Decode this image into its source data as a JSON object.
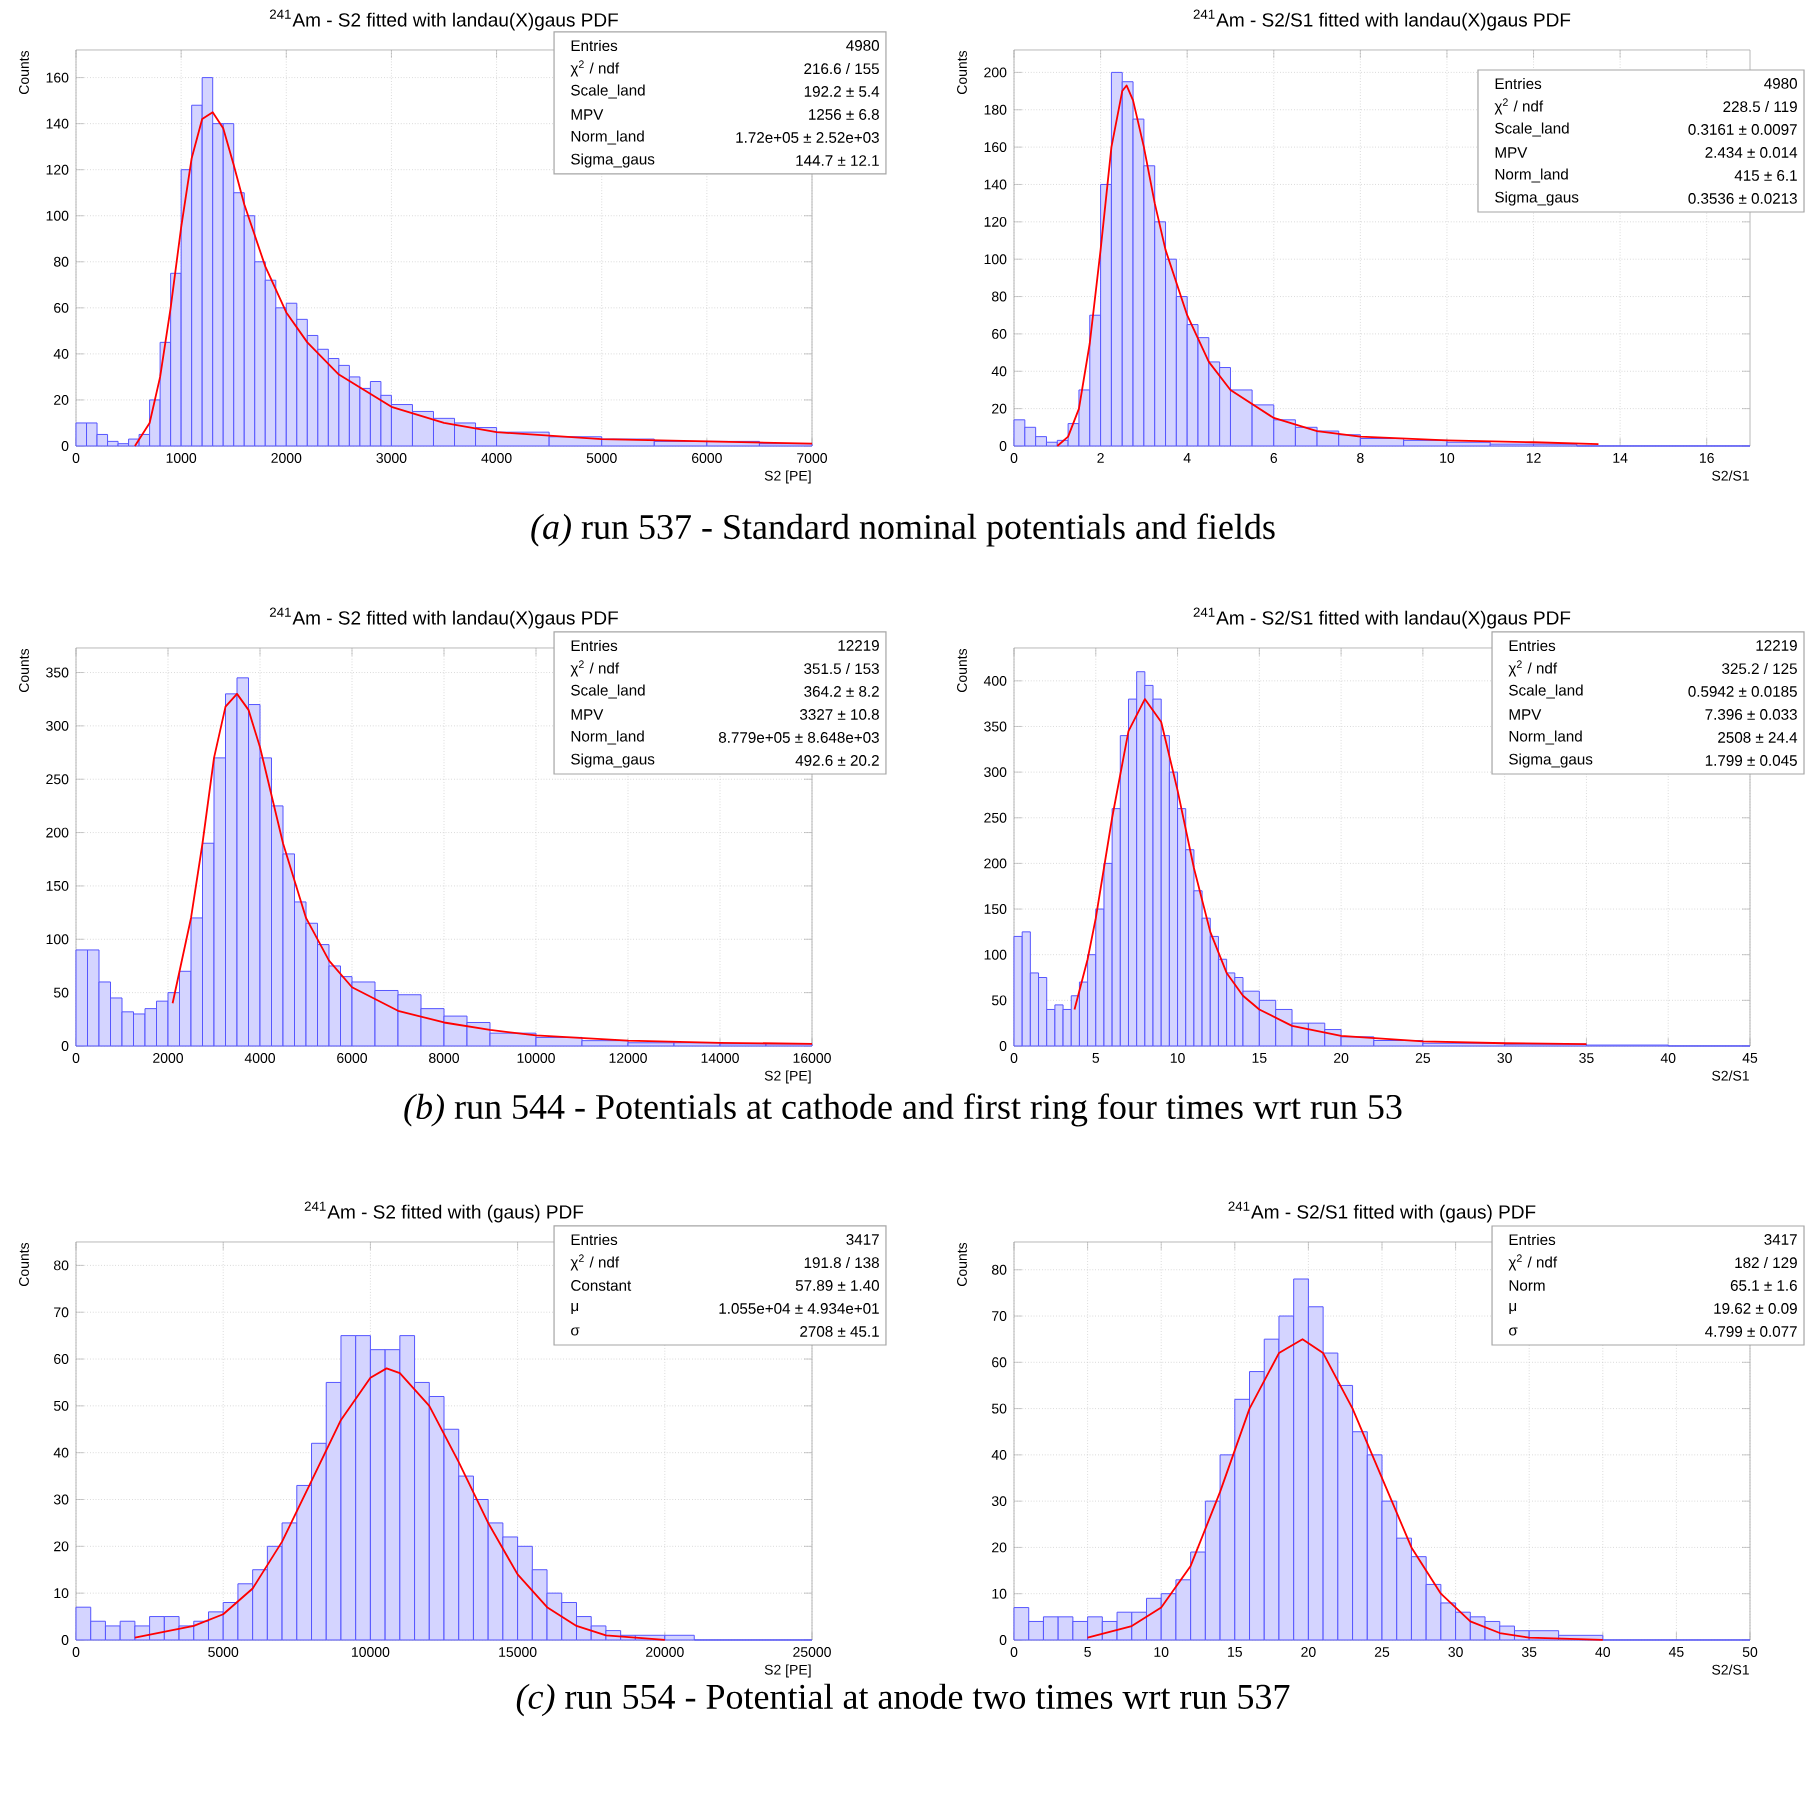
{
  "chart_data": [
    {
      "type": "histogram",
      "title": "$^{241}$Am - S2 fitted with landau(X)gaus PDF",
      "xlabel": "S2 [PE]",
      "ylabel": "Counts",
      "xlim": [
        0,
        7000
      ],
      "ylim": [
        0,
        172
      ],
      "xticks": [
        0,
        1000,
        2000,
        3000,
        4000,
        5000,
        6000,
        7000
      ],
      "yticks": [
        0,
        20,
        40,
        60,
        80,
        100,
        120,
        140,
        160
      ],
      "grid": true,
      "series": [
        {
          "color": "#5555ff",
          "bins": [
            0,
            100,
            200,
            300,
            400,
            500,
            600,
            700,
            800,
            900,
            1000,
            1100,
            1200,
            1300,
            1400,
            1500,
            1600,
            1700,
            1800,
            1900,
            2000,
            2100,
            2200,
            2300,
            2400,
            2500,
            2600,
            2700,
            2800,
            2900,
            3000,
            3200,
            3400,
            3600,
            3800,
            4000,
            4500,
            5000,
            5500,
            6000,
            6500,
            7000
          ],
          "values": [
            10,
            10,
            5,
            2,
            1,
            3,
            5,
            20,
            45,
            75,
            120,
            148,
            160,
            140,
            140,
            110,
            100,
            80,
            72,
            60,
            62,
            55,
            48,
            42,
            38,
            35,
            30,
            25,
            28,
            22,
            18,
            15,
            12,
            10,
            8,
            6,
            4,
            3,
            2,
            2,
            1
          ]
        },
        {
          "type": "line",
          "color": "#ff0000",
          "x": [
            560,
            700,
            800,
            900,
            1000,
            1100,
            1200,
            1300,
            1400,
            1500,
            1600,
            1800,
            2000,
            2200,
            2500,
            3000,
            3500,
            4000,
            5000,
            6000,
            7000
          ],
          "values": [
            0,
            10,
            30,
            60,
            95,
            125,
            142,
            145,
            138,
            122,
            105,
            78,
            58,
            45,
            31,
            17,
            10,
            6,
            3,
            2,
            1
          ]
        }
      ],
      "annotations": [
        "Entries",
        "4980",
        "χ$^{2}$ / ndf",
        "216.6 / 155",
        "Scale_land",
        "192.2 ± 5.4",
        "MPV",
        "1256 ± 6.8",
        "Norm_land",
        "1.72e+05 ± 2.52e+03",
        "Sigma_gaus",
        "144.7 ± 12.1",
        "*(a)* run 537 - Standard nominal potentials and fields"
      ]
    },
    {
      "type": "histogram",
      "title": "$^{241}$Am - S2/S1 fitted with landau(X)gaus PDF",
      "xlabel": "S2/S1",
      "ylabel": "Counts",
      "xlim": [
        0,
        17
      ],
      "ylim": [
        0,
        212
      ],
      "xticks": [
        0,
        2,
        4,
        6,
        8,
        10,
        12,
        14,
        16
      ],
      "yticks": [
        0,
        20,
        40,
        60,
        80,
        100,
        120,
        140,
        160,
        180,
        200
      ],
      "grid": true,
      "series": [
        {
          "color": "#5555ff",
          "bins": [
            0,
            0.25,
            0.5,
            0.75,
            1,
            1.25,
            1.5,
            1.75,
            2,
            2.25,
            2.5,
            2.75,
            3,
            3.25,
            3.5,
            3.75,
            4,
            4.25,
            4.5,
            4.75,
            5,
            5.5,
            6,
            6.5,
            7,
            7.5,
            8,
            9,
            10,
            11,
            12,
            13,
            17
          ],
          "values": [
            14,
            10,
            5,
            2,
            3,
            12,
            30,
            70,
            140,
            200,
            195,
            175,
            150,
            120,
            100,
            80,
            65,
            58,
            45,
            42,
            30,
            22,
            14,
            10,
            8,
            6,
            4,
            3,
            2,
            1,
            1,
            0
          ]
        },
        {
          "type": "line",
          "color": "#ff0000",
          "x": [
            1,
            1.25,
            1.5,
            1.75,
            2,
            2.25,
            2.5,
            2.6,
            2.75,
            3,
            3.25,
            3.5,
            4,
            4.5,
            5,
            6,
            7,
            8,
            10,
            12,
            13.5
          ],
          "values": [
            0,
            5,
            20,
            55,
            105,
            160,
            190,
            193,
            185,
            160,
            130,
            105,
            70,
            45,
            30,
            15,
            8,
            5,
            3,
            2,
            1
          ]
        }
      ],
      "annotations": [
        "Entries",
        "4980",
        "χ$^{2}$ / ndf",
        "228.5 / 119",
        "Scale_land",
        "0.3161 ± 0.0097",
        "MPV",
        "2.434 ± 0.014",
        "Norm_land",
        "415 ± 6.1",
        "Sigma_gaus",
        "0.3536 ± 0.0213"
      ]
    },
    {
      "type": "histogram",
      "title": "$^{241}$Am - S2 fitted with landau(X)gaus PDF",
      "xlabel": "S2 [PE]",
      "ylabel": "Counts",
      "xlim": [
        0,
        16000
      ],
      "ylim": [
        0,
        373
      ],
      "xticks": [
        0,
        2000,
        4000,
        6000,
        8000,
        10000,
        12000,
        14000,
        16000
      ],
      "yticks": [
        0,
        50,
        100,
        150,
        200,
        250,
        300,
        350
      ],
      "grid": true,
      "series": [
        {
          "color": "#5555ff",
          "bins": [
            0,
            250,
            500,
            750,
            1000,
            1250,
            1500,
            1750,
            2000,
            2250,
            2500,
            2750,
            3000,
            3250,
            3500,
            3750,
            4000,
            4250,
            4500,
            4750,
            5000,
            5250,
            5500,
            5750,
            6000,
            6500,
            7000,
            7500,
            8000,
            8500,
            9000,
            10000,
            11000,
            12000,
            13000,
            14000,
            15000,
            16000
          ],
          "values": [
            90,
            90,
            60,
            45,
            32,
            30,
            35,
            42,
            50,
            70,
            120,
            190,
            270,
            330,
            345,
            320,
            270,
            225,
            180,
            135,
            115,
            95,
            75,
            65,
            60,
            52,
            48,
            35,
            28,
            22,
            12,
            8,
            5,
            3,
            3,
            2,
            2
          ]
        },
        {
          "type": "line",
          "color": "#ff0000",
          "x": [
            2100,
            2500,
            2750,
            3000,
            3250,
            3500,
            3750,
            4000,
            4250,
            4500,
            5000,
            5500,
            6000,
            7000,
            8000,
            9000,
            10000,
            12000,
            14000,
            16000
          ],
          "values": [
            40,
            120,
            190,
            270,
            318,
            330,
            315,
            280,
            235,
            190,
            120,
            80,
            55,
            33,
            22,
            15,
            10,
            5,
            3,
            2
          ]
        }
      ],
      "annotations": [
        "Entries",
        "12219",
        "χ$^{2}$ / ndf",
        "351.5 / 153",
        "Scale_land",
        "364.2 ± 8.2",
        "MPV",
        "3327 ± 10.8",
        "Norm_land",
        "8.779e+05 ± 8.648e+03",
        "Sigma_gaus",
        "492.6 ± 20.2",
        "*(b)* run 544 - Potentials at cathode and first ring four times wrt run 53"
      ]
    },
    {
      "type": "histogram",
      "title": "$^{241}$Am - S2/S1 fitted with landau(X)gaus PDF",
      "xlabel": "S2/S1",
      "ylabel": "Counts",
      "xlim": [
        0,
        45
      ],
      "ylim": [
        0,
        436
      ],
      "xticks": [
        0,
        5,
        10,
        15,
        20,
        25,
        30,
        35,
        40,
        45
      ],
      "yticks": [
        0,
        50,
        100,
        150,
        200,
        250,
        300,
        350,
        400
      ],
      "grid": true,
      "series": [
        {
          "color": "#5555ff",
          "bins": [
            0,
            0.5,
            1,
            1.5,
            2,
            2.5,
            3,
            3.5,
            4,
            4.5,
            5,
            5.5,
            6,
            6.5,
            7,
            7.5,
            8,
            8.5,
            9,
            9.5,
            10,
            10.5,
            11,
            11.5,
            12,
            12.5,
            13,
            13.5,
            14,
            15,
            16,
            17,
            18,
            19,
            20,
            22,
            25,
            30,
            35,
            40,
            45
          ],
          "values": [
            120,
            125,
            80,
            75,
            40,
            45,
            40,
            55,
            70,
            100,
            150,
            200,
            260,
            340,
            380,
            410,
            395,
            380,
            340,
            300,
            260,
            215,
            170,
            140,
            120,
            95,
            80,
            75,
            60,
            50,
            40,
            25,
            25,
            18,
            10,
            6,
            3,
            2,
            1,
            0
          ]
        },
        {
          "type": "line",
          "color": "#ff0000",
          "x": [
            3.7,
            4.5,
            5,
            6,
            7,
            8,
            9,
            10,
            11,
            12,
            13,
            14,
            15,
            17,
            20,
            25,
            30,
            35
          ],
          "values": [
            40,
            95,
            140,
            250,
            345,
            380,
            355,
            280,
            195,
            125,
            80,
            55,
            40,
            22,
            11,
            5,
            3,
            2
          ]
        }
      ],
      "annotations": [
        "Entries",
        "12219",
        "χ$^{2}$ / ndf",
        "325.2 / 125",
        "Scale_land",
        "0.5942 ± 0.0185",
        "MPV",
        "7.396 ± 0.033",
        "Norm_land",
        "2508 ± 24.4",
        "Sigma_gaus",
        "1.799 ± 0.045"
      ]
    },
    {
      "type": "histogram",
      "title": "$^{241}$Am - S2 fitted with (gaus) PDF",
      "xlabel": "S2 [PE]",
      "ylabel": "Counts",
      "xlim": [
        0,
        25000
      ],
      "ylim": [
        0,
        85
      ],
      "xticks": [
        0,
        5000,
        10000,
        15000,
        20000,
        25000
      ],
      "yticks": [
        0,
        10,
        20,
        30,
        40,
        50,
        60,
        70,
        80
      ],
      "grid": true,
      "series": [
        {
          "color": "#5555ff",
          "bins": [
            0,
            500,
            1000,
            1500,
            2000,
            2500,
            3000,
            3500,
            4000,
            4500,
            5000,
            5500,
            6000,
            6500,
            7000,
            7500,
            8000,
            8500,
            9000,
            9500,
            10000,
            10500,
            11000,
            11500,
            12000,
            12500,
            13000,
            13500,
            14000,
            14500,
            15000,
            15500,
            16000,
            16500,
            17000,
            17500,
            18000,
            18500,
            19000,
            20000,
            21000,
            25000
          ],
          "values": [
            7,
            4,
            3,
            4,
            3,
            5,
            5,
            3,
            4,
            6,
            8,
            12,
            15,
            20,
            25,
            33,
            42,
            55,
            65,
            65,
            62,
            62,
            65,
            55,
            52,
            45,
            35,
            30,
            25,
            22,
            20,
            15,
            10,
            8,
            5,
            3,
            2,
            1,
            1,
            1,
            0
          ]
        },
        {
          "type": "line",
          "color": "#ff0000",
          "x": [
            2000,
            4000,
            5000,
            6000,
            7000,
            8000,
            9000,
            10000,
            10550,
            11000,
            12000,
            13000,
            14000,
            15000,
            16000,
            17000,
            18000,
            20000
          ],
          "values": [
            0.5,
            3,
            5.5,
            11,
            21,
            34,
            47,
            56,
            58,
            57,
            50,
            38,
            25,
            14,
            7,
            3,
            1,
            0
          ]
        }
      ],
      "annotations": [
        "Entries",
        "3417",
        "χ$^{2}$ / ndf",
        "191.8 / 138",
        "Constant",
        "57.89 ± 1.40",
        "μ",
        "1.055e+04 ± 4.934e+01",
        "σ",
        "2708 ± 45.1",
        "*(c)* run 554 - Potential at anode two times wrt run 537"
      ]
    },
    {
      "type": "histogram",
      "title": "$^{241}$Am - S2/S1 fitted with (gaus) PDF",
      "xlabel": "S2/S1",
      "ylabel": "Counts",
      "xlim": [
        0,
        50
      ],
      "ylim": [
        0,
        86
      ],
      "xticks": [
        0,
        5,
        10,
        15,
        20,
        25,
        30,
        35,
        40,
        45,
        50
      ],
      "yticks": [
        0,
        10,
        20,
        30,
        40,
        50,
        60,
        70,
        80
      ],
      "grid": true,
      "series": [
        {
          "color": "#5555ff",
          "bins": [
            0,
            1,
            2,
            3,
            4,
            5,
            6,
            7,
            8,
            9,
            10,
            11,
            12,
            13,
            14,
            15,
            16,
            17,
            18,
            19,
            20,
            21,
            22,
            23,
            24,
            25,
            26,
            27,
            28,
            29,
            30,
            31,
            32,
            33,
            34,
            35,
            37,
            40,
            50
          ],
          "values": [
            7,
            4,
            5,
            5,
            4,
            5,
            4,
            6,
            6,
            9,
            10,
            13,
            19,
            30,
            40,
            52,
            58,
            65,
            70,
            78,
            72,
            62,
            55,
            45,
            40,
            30,
            22,
            18,
            12,
            8,
            6,
            5,
            4,
            3,
            2,
            2,
            1,
            0
          ]
        },
        {
          "type": "line",
          "color": "#ff0000",
          "x": [
            5,
            8,
            10,
            12,
            14,
            16,
            18,
            19.6,
            21,
            23,
            25,
            27,
            29,
            31,
            33,
            35,
            40
          ],
          "values": [
            0.5,
            3,
            7,
            16,
            32,
            50,
            62,
            65,
            62,
            50,
            35,
            20,
            10,
            4,
            1.5,
            0.5,
            0
          ]
        }
      ],
      "annotations": [
        "Entries",
        "3417",
        "χ$^{2}$ / ndf",
        "182 / 129",
        "Norm",
        "65.1 ± 1.6",
        "μ",
        "19.62 ± 0.09",
        "σ",
        "4.799 ± 0.077"
      ]
    }
  ]
}
